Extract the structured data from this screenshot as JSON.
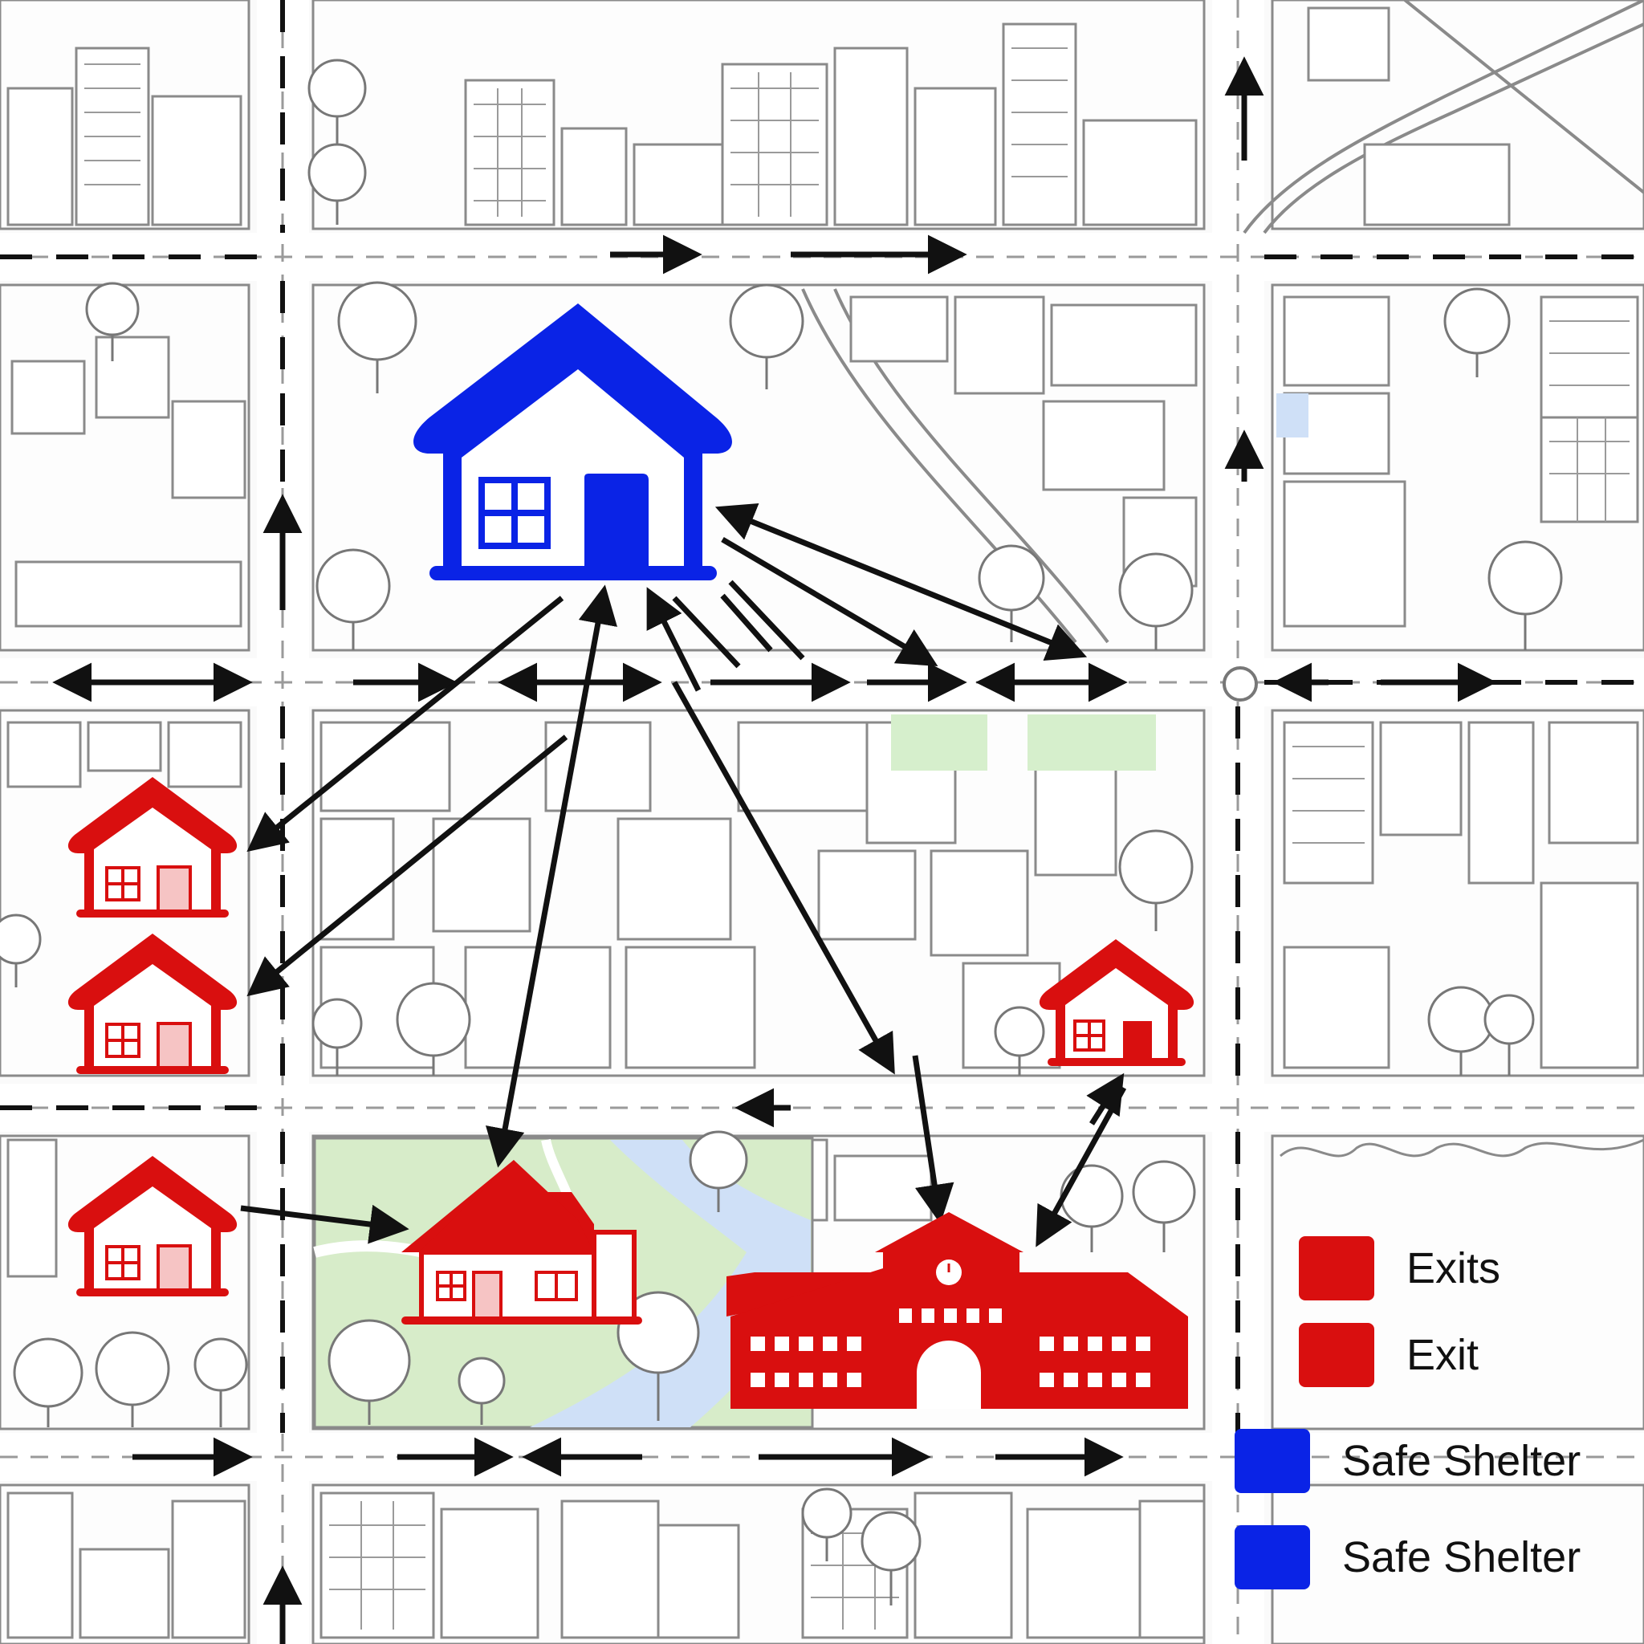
{
  "colors": {
    "exit": "#d90f0f",
    "shelter": "#0a23e6",
    "road_line": "#9a9a9a",
    "building_stroke": "#8a8a8a",
    "park": "#cfe8c2",
    "water": "#cfe0f7",
    "arrow": "#111111"
  },
  "legend": {
    "items": [
      {
        "label": "Exits",
        "color": "#d90f0f"
      },
      {
        "label": "Exit",
        "color": "#d90f0f"
      },
      {
        "label": "Safe Shelter",
        "color": "#0a23e6"
      },
      {
        "label": "Safe Shelter",
        "color": "#0a23e6"
      }
    ]
  },
  "markers": {
    "shelter": {
      "icon": "house-icon",
      "category": "Safe Shelter"
    },
    "exits": [
      {
        "icon": "house-icon",
        "category": "Exit"
      },
      {
        "icon": "house-icon",
        "category": "Exit"
      },
      {
        "icon": "house-icon",
        "category": "Exit"
      },
      {
        "icon": "house-icon",
        "category": "Exit"
      },
      {
        "icon": "house-icon",
        "category": "Exit"
      },
      {
        "icon": "school-building-icon",
        "category": "Exit"
      }
    ]
  }
}
